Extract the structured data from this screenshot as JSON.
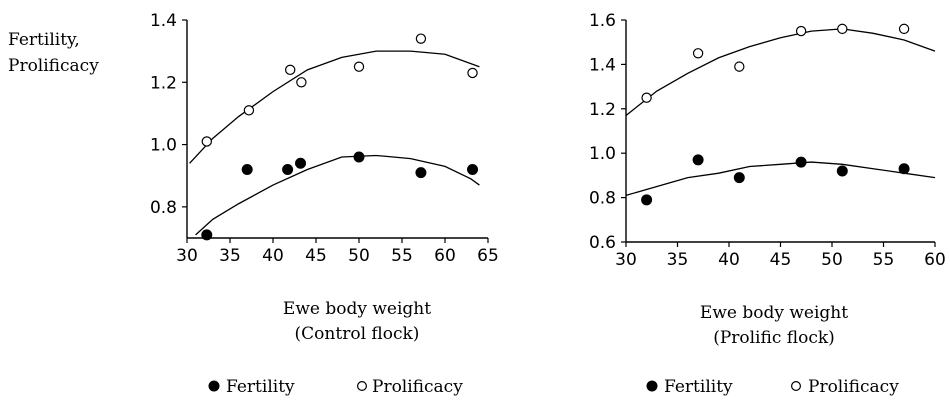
{
  "ylabel_lines": [
    "Fertility,",
    "Prolificacy"
  ],
  "chart_data": [
    {
      "type": "scatter",
      "xlabel_lines": [
        "Ewe body weight",
        "(Control flock)"
      ],
      "xlim": [
        30,
        65
      ],
      "ylim": [
        0.7,
        1.4
      ],
      "xticks": [
        30,
        35,
        40,
        45,
        50,
        55,
        60,
        65
      ],
      "yticks": [
        0.8,
        1.0,
        1.2,
        1.4
      ],
      "ytick_labels": [
        "0.8",
        "1.0",
        "1.2",
        "1.4"
      ],
      "grid": false,
      "legend_position": "bottom",
      "series": [
        {
          "name": "Fertility",
          "marker": "filled-circle",
          "points": [
            [
              32.3,
              0.71
            ],
            [
              37,
              0.92
            ],
            [
              41.7,
              0.92
            ],
            [
              43.2,
              0.94
            ],
            [
              50,
              0.96
            ],
            [
              57.2,
              0.91
            ],
            [
              63.2,
              0.92
            ]
          ],
          "trend": [
            [
              31,
              0.71
            ],
            [
              33,
              0.76
            ],
            [
              36,
              0.81
            ],
            [
              40,
              0.87
            ],
            [
              44,
              0.92
            ],
            [
              48,
              0.96
            ],
            [
              52,
              0.965
            ],
            [
              56,
              0.955
            ],
            [
              60,
              0.93
            ],
            [
              63,
              0.89
            ],
            [
              64,
              0.87
            ]
          ]
        },
        {
          "name": "Prolificacy",
          "marker": "open-circle",
          "points": [
            [
              32.3,
              1.01
            ],
            [
              37.2,
              1.11
            ],
            [
              42,
              1.24
            ],
            [
              43.3,
              1.2
            ],
            [
              50,
              1.25
            ],
            [
              57.2,
              1.34
            ],
            [
              63.2,
              1.23
            ]
          ],
          "trend": [
            [
              30.3,
              0.94
            ],
            [
              33,
              1.02
            ],
            [
              36,
              1.09
            ],
            [
              40,
              1.17
            ],
            [
              44,
              1.24
            ],
            [
              48,
              1.28
            ],
            [
              52,
              1.3
            ],
            [
              56,
              1.3
            ],
            [
              60,
              1.29
            ],
            [
              64,
              1.25
            ]
          ]
        }
      ]
    },
    {
      "type": "scatter",
      "xlabel_lines": [
        "Ewe body weight",
        "(Prolific flock)"
      ],
      "xlim": [
        30,
        60
      ],
      "ylim": [
        0.6,
        1.6
      ],
      "xticks": [
        30,
        35,
        40,
        45,
        50,
        55,
        60
      ],
      "yticks": [
        0.6,
        0.8,
        1.0,
        1.2,
        1.4,
        1.6
      ],
      "ytick_labels": [
        "0.6",
        "0.8",
        "1.0",
        "1.2",
        "1.4",
        "1.6"
      ],
      "grid": false,
      "legend_position": "bottom",
      "series": [
        {
          "name": "Fertility",
          "marker": "filled-circle",
          "points": [
            [
              32,
              0.79
            ],
            [
              37,
              0.97
            ],
            [
              41,
              0.89
            ],
            [
              47,
              0.96
            ],
            [
              51,
              0.92
            ],
            [
              57,
              0.93
            ]
          ],
          "trend": [
            [
              30,
              0.81
            ],
            [
              33,
              0.85
            ],
            [
              36,
              0.89
            ],
            [
              39,
              0.91
            ],
            [
              42,
              0.94
            ],
            [
              45,
              0.95
            ],
            [
              48,
              0.96
            ],
            [
              51,
              0.95
            ],
            [
              54,
              0.93
            ],
            [
              57,
              0.91
            ],
            [
              60,
              0.89
            ]
          ]
        },
        {
          "name": "Prolificacy",
          "marker": "open-circle",
          "points": [
            [
              32,
              1.25
            ],
            [
              37,
              1.45
            ],
            [
              41,
              1.39
            ],
            [
              47,
              1.55
            ],
            [
              51,
              1.56
            ],
            [
              57,
              1.56
            ]
          ],
          "trend": [
            [
              30,
              1.17
            ],
            [
              33,
              1.28
            ],
            [
              36,
              1.36
            ],
            [
              39,
              1.43
            ],
            [
              42,
              1.48
            ],
            [
              45,
              1.52
            ],
            [
              48,
              1.55
            ],
            [
              51,
              1.56
            ],
            [
              54,
              1.54
            ],
            [
              57,
              1.51
            ],
            [
              60,
              1.46
            ]
          ]
        }
      ]
    }
  ]
}
